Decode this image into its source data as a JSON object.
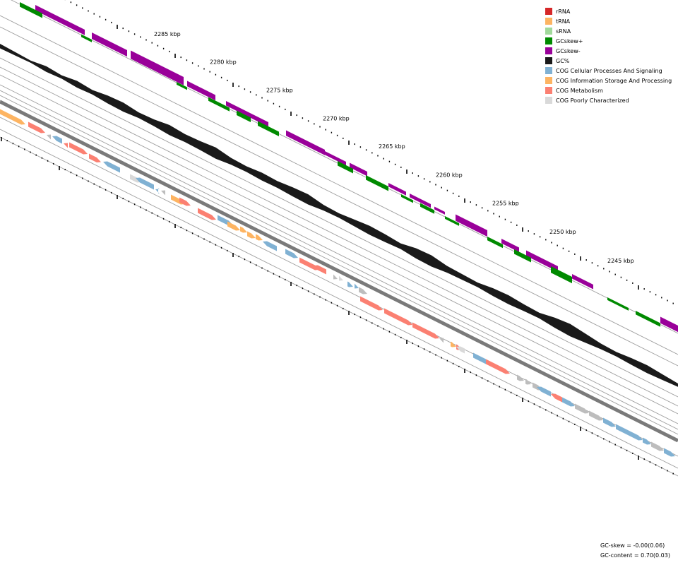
{
  "legend": [
    {
      "label": "rRNA",
      "color": "#d62728"
    },
    {
      "label": "tRNA",
      "color": "#fdb462"
    },
    {
      "label": "sRNA",
      "color": "#a1d99b"
    },
    {
      "label": "GCskew+",
      "color": "#008a00"
    },
    {
      "label": "GCskew-",
      "color": "#990099"
    },
    {
      "label": "GC%",
      "color": "#1a1a1a"
    },
    {
      "label": "COG Cellular Processes And Signaling",
      "color": "#80b1d3"
    },
    {
      "label": "COG Information Storage And Processing",
      "color": "#fdb462"
    },
    {
      "label": "COG Metabolism",
      "color": "#fb8072"
    },
    {
      "label": "COG Poorly Characterized",
      "color": "#d9d9d9"
    }
  ],
  "kbp_labels": [
    "2285 kbp",
    "2280 kbp",
    "2275 kbp",
    "2270 kbp",
    "2265 kbp",
    "2260 kbp",
    "2255 kbp",
    "2250 kbp",
    "2245 kbp"
  ],
  "stats": {
    "gc_skew": "GC-skew = -0.00(0.06)",
    "gc_content": "GC-content = 0.70(0.03)"
  }
}
